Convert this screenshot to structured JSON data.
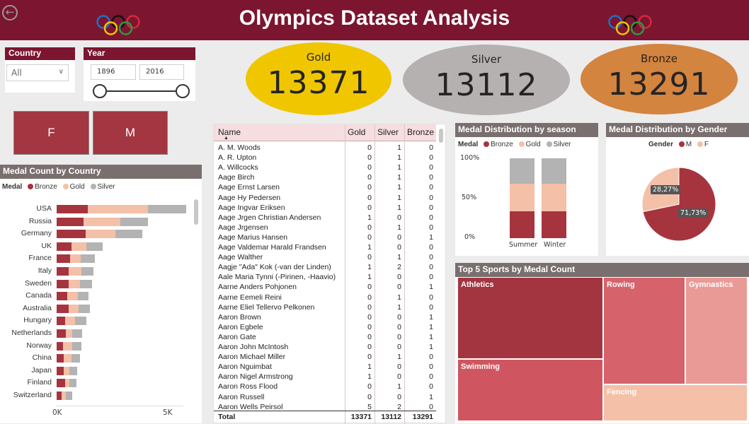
{
  "header": {
    "title": "Olympics Dataset Analysis",
    "back_icon": "arrow-left-circle-icon"
  },
  "slicers": {
    "country": {
      "label": "Country",
      "value": "All"
    },
    "year": {
      "label": "Year",
      "from": "1896",
      "to": "2016"
    }
  },
  "medals": {
    "gold": {
      "label": "Gold",
      "value": "13371",
      "color": "#f0c600"
    },
    "silver": {
      "label": "Silver",
      "value": "13112",
      "color": "#b6b1b1"
    },
    "bronze": {
      "label": "Bronze",
      "value": "13291",
      "color": "#d3843f"
    }
  },
  "gender_buttons": {
    "female": "F",
    "male": "M"
  },
  "country_chart": {
    "title": "Medal Count by Country",
    "legend_title": "Medal",
    "legend": [
      "Bronze",
      "Gold",
      "Silver"
    ],
    "axis_min": "0K",
    "axis_max": "5K"
  },
  "table": {
    "headers": {
      "name": "Name",
      "gold": "Gold",
      "silver": "Silver",
      "bronze": "Bronze"
    },
    "rows": [
      [
        "A. M. Woods",
        "0",
        "1",
        "0"
      ],
      [
        "A. R. Upton",
        "0",
        "1",
        "0"
      ],
      [
        "A. Willcocks",
        "0",
        "1",
        "0"
      ],
      [
        "Aage Birch",
        "0",
        "1",
        "0"
      ],
      [
        "Aage Ernst Larsen",
        "0",
        "1",
        "0"
      ],
      [
        "Aage Hy Pedersen",
        "0",
        "1",
        "0"
      ],
      [
        "Aage Ingvar Eriksen",
        "0",
        "1",
        "0"
      ],
      [
        "Aage Jrgen Christian Andersen",
        "1",
        "0",
        "0"
      ],
      [
        "Aage Jrgensen",
        "0",
        "1",
        "0"
      ],
      [
        "Aage Marius Hansen",
        "0",
        "0",
        "1"
      ],
      [
        "Aage Valdemar Harald Frandsen",
        "1",
        "0",
        "0"
      ],
      [
        "Aage Walther",
        "0",
        "1",
        "0"
      ],
      [
        "Aagje \"Ada\" Kok (-van der Linden)",
        "1",
        "2",
        "0"
      ],
      [
        "Aale Maria Tynni (-Pirinen, -Haavio)",
        "1",
        "0",
        "0"
      ],
      [
        "Aarne Anders Pohjonen",
        "0",
        "0",
        "1"
      ],
      [
        "Aarne Eemeli Reini",
        "0",
        "1",
        "0"
      ],
      [
        "Aarne Eliel Tellervo Pelkonen",
        "0",
        "1",
        "0"
      ],
      [
        "Aaron Brown",
        "0",
        "0",
        "1"
      ],
      [
        "Aaron Egbele",
        "0",
        "0",
        "1"
      ],
      [
        "Aaron Gate",
        "0",
        "0",
        "1"
      ],
      [
        "Aaron John McIntosh",
        "0",
        "0",
        "1"
      ],
      [
        "Aaron Michael Miller",
        "0",
        "1",
        "0"
      ],
      [
        "Aaron Nguimbat",
        "1",
        "0",
        "0"
      ],
      [
        "Aaron Nigel Armstrong",
        "1",
        "0",
        "0"
      ],
      [
        "Aaron Ross Flood",
        "0",
        "1",
        "0"
      ],
      [
        "Aaron Russell",
        "0",
        "0",
        "1"
      ],
      [
        "Aaron Wells Peirsol",
        "5",
        "2",
        "0"
      ]
    ],
    "total": [
      "Total",
      "13371",
      "13112",
      "13291"
    ]
  },
  "season_chart": {
    "title": "Medal Distribution by season",
    "legend_title": "Medal",
    "legend": [
      "Bronze",
      "Gold",
      "Silver"
    ],
    "y_ticks": [
      "100%",
      "50%",
      "0%"
    ]
  },
  "gender_chart": {
    "title": "Medal Distribution by Gender",
    "legend_title": "Gender",
    "legend": [
      "M",
      "F"
    ],
    "labels": {
      "m": "71,73%",
      "f": "28,27%"
    }
  },
  "treemap": {
    "title": "Top 5 Sports by Medal Count",
    "tiles": [
      "Athletics",
      "Swimming",
      "Rowing",
      "Gymnastics",
      "Fencing"
    ]
  },
  "colors": {
    "bronze": "#a6343f",
    "gold": "#f4c0a8",
    "silver": "#b3b3b3",
    "header": "#7b1530"
  },
  "chart_data": [
    {
      "type": "bar",
      "orientation": "horizontal",
      "stacked": true,
      "title": "Medal Count by Country",
      "categories": [
        "USA",
        "Russia",
        "Germany",
        "UK",
        "France",
        "Italy",
        "Sweden",
        "Canada",
        "Australia",
        "Hungary",
        "Netherlands",
        "Norway",
        "China",
        "Japan",
        "Finland",
        "Switzerland"
      ],
      "series": [
        {
          "name": "Bronze",
          "values": [
            1350,
            1180,
            1260,
            640,
            580,
            540,
            530,
            460,
            520,
            370,
            400,
            290,
            300,
            320,
            370,
            230
          ]
        },
        {
          "name": "Gold",
          "values": [
            2650,
            1600,
            1320,
            660,
            460,
            540,
            480,
            460,
            430,
            440,
            280,
            380,
            340,
            250,
            190,
            180
          ]
        },
        {
          "name": "Silver",
          "values": [
            1650,
            1220,
            1170,
            710,
            640,
            520,
            540,
            460,
            500,
            480,
            440,
            420,
            380,
            330,
            300,
            270
          ]
        }
      ],
      "xlim": [
        0,
        5500
      ],
      "x_ticks": [
        "0K",
        "5K"
      ]
    },
    {
      "type": "bar",
      "stacked": true,
      "percent": true,
      "title": "Medal Distribution by season",
      "categories": [
        "Summer",
        "Winter"
      ],
      "series": [
        {
          "name": "Bronze",
          "values": [
            34,
            34
          ]
        },
        {
          "name": "Gold",
          "values": [
            34,
            34
          ]
        },
        {
          "name": "Silver",
          "values": [
            32,
            32
          ]
        }
      ],
      "ylim": [
        0,
        100
      ]
    },
    {
      "type": "pie",
      "title": "Medal Distribution by Gender",
      "categories": [
        "M",
        "F"
      ],
      "values": [
        71.73,
        28.27
      ]
    },
    {
      "type": "treemap",
      "title": "Top 5 Sports by Medal Count",
      "categories": [
        "Athletics",
        "Swimming",
        "Rowing",
        "Gymnastics",
        "Fencing"
      ],
      "values": [
        3900,
        3050,
        2950,
        2300,
        1550
      ]
    }
  ]
}
